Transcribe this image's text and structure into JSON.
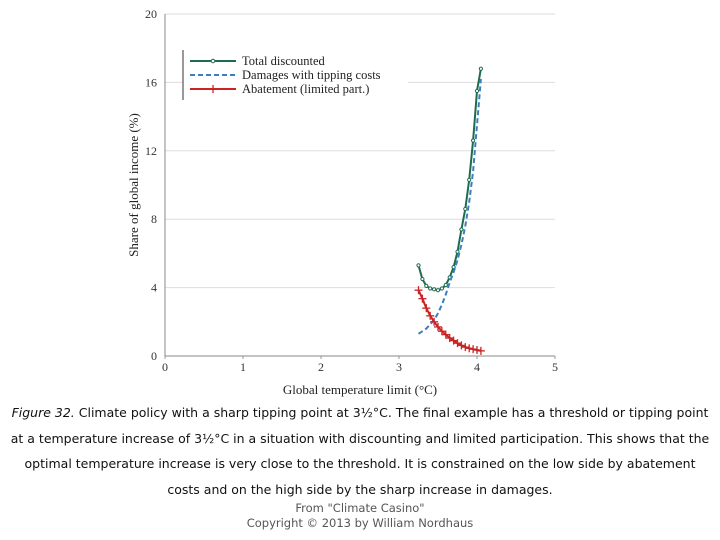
{
  "chart_data": {
    "type": "line",
    "xlabel": "Global temperature limit (°C)",
    "ylabel": "Share of global income (%)",
    "xlim": [
      0,
      5
    ],
    "ylim": [
      0,
      20
    ],
    "x_ticks": [
      "0",
      "1",
      "2",
      "3",
      "4",
      "5"
    ],
    "y_ticks": [
      "0",
      "4",
      "8",
      "12",
      "16",
      "20"
    ],
    "grid": "horizontal",
    "legend_position": "top-left",
    "series": [
      {
        "name": "Total discounted",
        "color": "#1f6b4e",
        "style": "solid with circle markers",
        "x": [
          3.25,
          3.3,
          3.35,
          3.4,
          3.45,
          3.5,
          3.55,
          3.6,
          3.65,
          3.7,
          3.75,
          3.8,
          3.85,
          3.9,
          3.95,
          4.0,
          4.05
        ],
        "y": [
          5.3,
          4.5,
          4.1,
          3.95,
          3.9,
          3.85,
          3.95,
          4.15,
          4.6,
          5.2,
          6.1,
          7.4,
          8.6,
          10.3,
          12.6,
          15.5,
          16.8
        ]
      },
      {
        "name": "Damages with tipping costs",
        "color": "#3a7fbf",
        "style": "dashed",
        "x": [
          3.25,
          3.35,
          3.45,
          3.5,
          3.55,
          3.6,
          3.65,
          3.7,
          3.75,
          3.8,
          3.85,
          3.9,
          3.95,
          4.0,
          4.05
        ],
        "y": [
          1.3,
          1.6,
          2.1,
          2.5,
          3.0,
          3.6,
          4.3,
          4.9,
          5.6,
          6.5,
          7.6,
          9.0,
          10.8,
          13.5,
          16.2
        ]
      },
      {
        "name": "Abatement (limited part.)",
        "color": "#cc2222",
        "style": "solid with plus markers",
        "x": [
          3.25,
          3.3,
          3.35,
          3.4,
          3.45,
          3.5,
          3.55,
          3.6,
          3.65,
          3.7,
          3.75,
          3.8,
          3.85,
          3.9,
          3.95,
          4.0,
          4.05
        ],
        "y": [
          3.85,
          3.35,
          2.8,
          2.35,
          2.0,
          1.7,
          1.45,
          1.25,
          1.05,
          0.9,
          0.75,
          0.62,
          0.52,
          0.45,
          0.4,
          0.35,
          0.3
        ]
      }
    ]
  },
  "caption": {
    "figure_label": "Figure 32.",
    "text": " Climate policy with a sharp tipping point at 3½°C. The final example has a threshold or tipping point at a temperature increase of 3½°C in a situation with discounting and limited participation. This shows that the optimal temperature increase is very close to the threshold. It is constrained on the low side by abatement costs and on the high side by the sharp increase in damages."
  },
  "credit": {
    "line1": "From \"Climate Casino\"",
    "line2": "Copyright © 2013 by William Nordhaus"
  }
}
